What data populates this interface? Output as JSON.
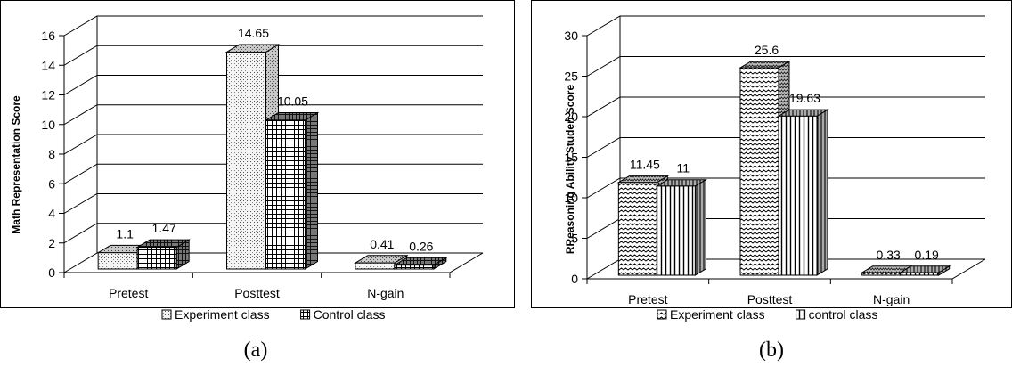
{
  "chart_data": [
    {
      "type": "bar",
      "panel_caption": "(a)",
      "ylabel": "Math Representation Score",
      "categories": [
        "Pretest",
        "Posttest",
        "N-gain"
      ],
      "ylim": [
        0,
        16
      ],
      "yticks": [
        "0",
        "2",
        "4",
        "6",
        "8",
        "10",
        "12",
        "14",
        "16"
      ],
      "series": [
        {
          "name": "Experiment class",
          "values": [
            1.1,
            14.65,
            0.41
          ],
          "labels": [
            "1.1",
            "14.65",
            "0.41"
          ],
          "pattern": "dots"
        },
        {
          "name": "Control class",
          "values": [
            1.47,
            10.05,
            0.26
          ],
          "labels": [
            "1.47",
            "10.05",
            "0.26"
          ],
          "pattern": "grid"
        }
      ],
      "legend": "bottom",
      "grid": true,
      "style": "3d-clustered-column"
    },
    {
      "type": "bar",
      "panel_caption": "(b)",
      "ylabel": "RReasoning Ability Studen Score",
      "categories": [
        "Pretest",
        "Posttest",
        "N-gain"
      ],
      "ylim": [
        0,
        30
      ],
      "yticks": [
        "0",
        "5",
        "10",
        "15",
        "20",
        "25",
        "30"
      ],
      "series": [
        {
          "name": "Experiment class",
          "values": [
            11.45,
            25.6,
            0.33
          ],
          "labels": [
            "11.45",
            "25.6",
            "0.33"
          ],
          "pattern": "waves"
        },
        {
          "name": "control class",
          "values": [
            11,
            19.63,
            0.19
          ],
          "labels": [
            "11",
            "19.63",
            "0.19"
          ],
          "pattern": "vlines"
        }
      ],
      "legend": "bottom",
      "grid": true,
      "style": "3d-clustered-column"
    }
  ]
}
